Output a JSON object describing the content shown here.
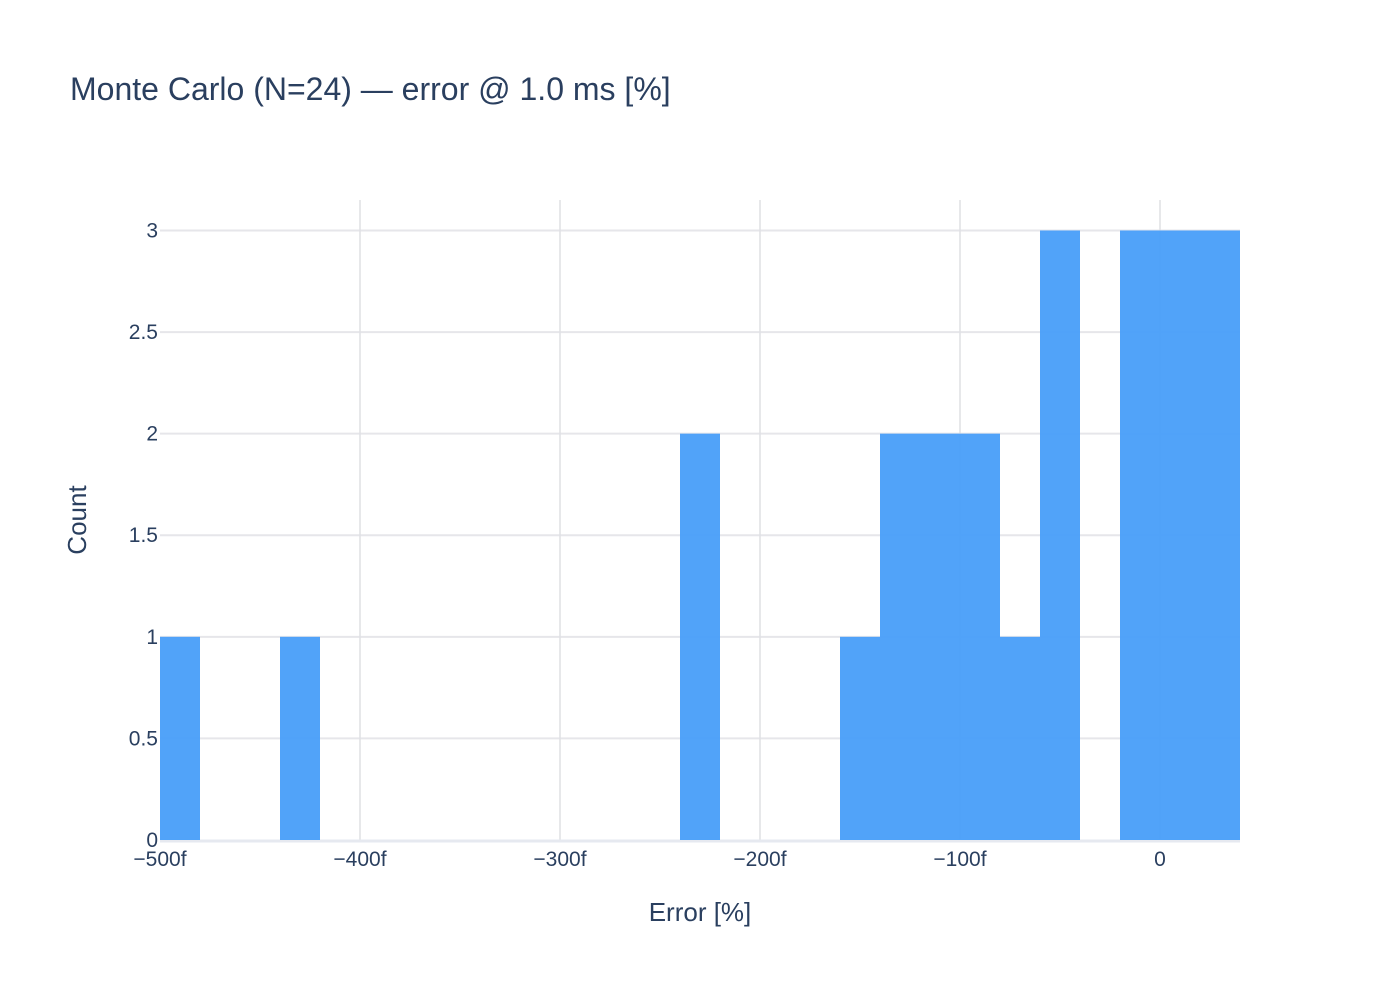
{
  "chart_data": {
    "type": "bar",
    "title": "Monte Carlo (N=24) — error @ 1.0 ms [%]",
    "xlabel": "Error [%]",
    "ylabel": "Count",
    "xlim": [
      -500,
      40
    ],
    "ylim": [
      0,
      3.15
    ],
    "bin_width": 20,
    "x_ticks": [
      {
        "value": -500,
        "label": "−500f"
      },
      {
        "value": -400,
        "label": "−400f"
      },
      {
        "value": -300,
        "label": "−300f"
      },
      {
        "value": -200,
        "label": "−200f"
      },
      {
        "value": -100,
        "label": "−100f"
      },
      {
        "value": 0,
        "label": "0"
      }
    ],
    "y_ticks": [
      {
        "value": 0,
        "label": "0"
      },
      {
        "value": 0.5,
        "label": "0.5"
      },
      {
        "value": 1,
        "label": "1"
      },
      {
        "value": 1.5,
        "label": "1.5"
      },
      {
        "value": 2,
        "label": "2"
      },
      {
        "value": 2.5,
        "label": "2.5"
      },
      {
        "value": 3,
        "label": "3"
      }
    ],
    "bins": [
      {
        "start": -500,
        "end": -480,
        "count": 1
      },
      {
        "start": -440,
        "end": -420,
        "count": 1
      },
      {
        "start": -240,
        "end": -220,
        "count": 2
      },
      {
        "start": -160,
        "end": -140,
        "count": 1
      },
      {
        "start": -140,
        "end": -120,
        "count": 2
      },
      {
        "start": -120,
        "end": -100,
        "count": 2
      },
      {
        "start": -100,
        "end": -80,
        "count": 2
      },
      {
        "start": -80,
        "end": -60,
        "count": 1
      },
      {
        "start": -60,
        "end": -40,
        "count": 3
      },
      {
        "start": -20,
        "end": 0,
        "count": 3
      },
      {
        "start": 0,
        "end": 20,
        "count": 3
      },
      {
        "start": 20,
        "end": 40,
        "count": 3
      }
    ],
    "bar_color": "#4a9ff9",
    "grid": true
  }
}
